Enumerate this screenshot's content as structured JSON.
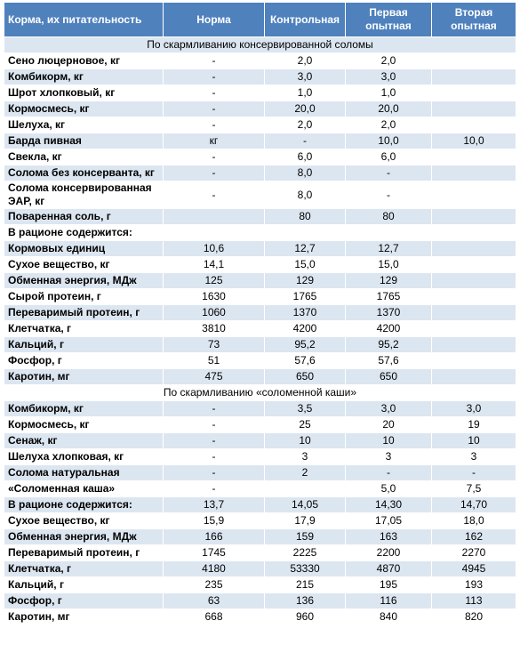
{
  "table": {
    "header": [
      "Корма, их питательность",
      "Норма",
      "Контрольная",
      "Первая опытная",
      "Вторая опытная"
    ],
    "sections": [
      {
        "title": "По скармливанию консервированной соломы",
        "rows": [
          [
            "Сено люцерновое, кг",
            "-",
            "2,0",
            "2,0",
            null
          ],
          [
            "Комбикорм, кг",
            "-",
            "3,0",
            "3,0",
            null
          ],
          [
            "Шрот хлопковый, кг",
            "-",
            "1,0",
            "1,0",
            null
          ],
          [
            "Кормосмесь, кг",
            "-",
            "20,0",
            "20,0",
            null
          ],
          [
            "Шелуха, кг",
            "-",
            "2,0",
            "2,0",
            null
          ],
          [
            "Барда пивная",
            "кг",
            "-",
            "10,0",
            "10,0"
          ],
          [
            "Свекла, кг",
            "-",
            "6,0",
            "6,0",
            null
          ],
          [
            "Солома без консерванта, кг",
            "-",
            "8,0",
            "-",
            null
          ],
          [
            "Солома консервированная ЭАР, кг",
            "-",
            "8,0",
            "-",
            null
          ],
          [
            "Поваренная соль, г",
            null,
            "80",
            "80",
            null
          ],
          [
            "В рационе содержится:",
            null,
            null,
            null,
            null
          ],
          [
            "Кормовых единиц",
            "10,6",
            "12,7",
            "12,7",
            null
          ],
          [
            "Сухое вещество, кг",
            "14,1",
            "15,0",
            "15,0",
            null
          ],
          [
            "Обменная энергия, МДж",
            "125",
            "129",
            "129",
            null
          ],
          [
            "Сырой протеин, г",
            "1630",
            "1765",
            "1765",
            null
          ],
          [
            "Переваримый протеин, г",
            "1060",
            "1370",
            "1370",
            null
          ],
          [
            "Клетчатка, г",
            "3810",
            "4200",
            "4200",
            null
          ],
          [
            "Кальций, г",
            "73",
            "95,2",
            "95,2",
            null
          ],
          [
            "Фосфор, г",
            "51",
            "57,6",
            "57,6",
            null
          ],
          [
            "Каротин, мг",
            "475",
            "650",
            "650",
            null
          ]
        ]
      },
      {
        "title": "По скармливанию «соломенной каши»",
        "rows": [
          [
            "Комбикорм, кг",
            "-",
            "3,5",
            "3,0",
            "3,0"
          ],
          [
            "Кормосмесь, кг",
            "-",
            "25",
            "20",
            "19"
          ],
          [
            "Сенаж, кг",
            "-",
            "10",
            "10",
            "10"
          ],
          [
            "Шелуха хлопковая, кг",
            "-",
            "3",
            "3",
            "3"
          ],
          [
            "Солома натуральная",
            "-",
            "2",
            "-",
            "-"
          ],
          [
            "«Соломенная каша»",
            "-",
            null,
            "5,0",
            "7,5"
          ],
          [
            "В рационе содержится:",
            "13,7",
            "14,05",
            "14,30",
            "14,70"
          ],
          [
            "Сухое вещество, кг",
            "15,9",
            "17,9",
            "17,05",
            "18,0"
          ],
          [
            "Обменная энергия, МДж",
            "166",
            "159",
            "163",
            "162"
          ],
          [
            "Переваримый протеин, г",
            "1745",
            "2225",
            "2200",
            "2270"
          ],
          [
            "Клетчатка, г",
            "4180",
            "53330",
            "4870",
            "4945"
          ],
          [
            "Кальций, г",
            "235",
            "215",
            "195",
            "193"
          ],
          [
            "Фосфор, г",
            "63",
            "136",
            "116",
            "113"
          ],
          [
            "Каротин, мг",
            "668",
            "960",
            "840",
            "820"
          ]
        ]
      }
    ]
  }
}
